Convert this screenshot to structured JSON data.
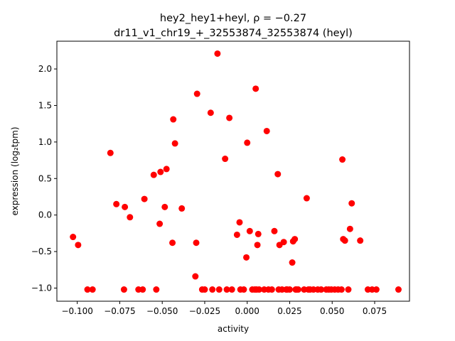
{
  "chart_data": {
    "type": "scatter",
    "title_line1": "hey2_hey1+heyl, ρ = −0.27",
    "title_line2": "dr11_v1_chr19_+_32553874_32553874 (heyl)",
    "xlabel": "activity",
    "ylabel": "expression (log₂tpm)",
    "xlim": [
      -0.112,
      0.0955
    ],
    "ylim": [
      -1.18,
      2.38
    ],
    "xticks": [
      -0.1,
      -0.075,
      -0.05,
      -0.025,
      0.0,
      0.025,
      0.05,
      0.075
    ],
    "xtick_labels": [
      "−0.100",
      "−0.075",
      "−0.050",
      "−0.025",
      "0.000",
      "0.025",
      "0.050",
      "0.075"
    ],
    "yticks": [
      -1.0,
      -0.5,
      0.0,
      0.5,
      1.0,
      1.5,
      2.0
    ],
    "ytick_labels": [
      "−1.0",
      "−0.5",
      "0.0",
      "0.5",
      "1.0",
      "1.5",
      "2.0"
    ],
    "grid": false,
    "marker_color": "#ff0000",
    "series": [
      {
        "x": [
          -0.1025,
          -0.0995,
          -0.094,
          -0.091,
          -0.0805,
          -0.077,
          -0.0725,
          -0.072,
          -0.069,
          -0.064,
          -0.0615,
          -0.0605,
          -0.055,
          -0.0535,
          -0.0515,
          -0.051,
          -0.0485,
          -0.0475,
          -0.044,
          -0.0435,
          -0.0425,
          -0.0385,
          -0.0305,
          -0.03,
          -0.0295,
          -0.0265,
          -0.025,
          -0.0215,
          -0.0205,
          -0.0175,
          -0.0165,
          -0.013,
          -0.012,
          -0.0105,
          -0.009,
          -0.006,
          -0.0045,
          -0.004,
          -0.002,
          -0.0005,
          0.0,
          0.0015,
          0.003,
          0.0045,
          0.005,
          0.0055,
          0.006,
          0.0065,
          0.007,
          0.01,
          0.0115,
          0.0125,
          0.0145,
          0.016,
          0.018,
          0.0185,
          0.019,
          0.0205,
          0.0215,
          0.023,
          0.0235,
          0.025,
          0.0265,
          0.027,
          0.028,
          0.0285,
          0.029,
          0.03,
          0.0335,
          0.035,
          0.036,
          0.037,
          0.039,
          0.0415,
          0.0435,
          0.0465,
          0.048,
          0.0495,
          0.0515,
          0.0535,
          0.0555,
          0.056,
          0.0565,
          0.0575,
          0.0595,
          0.0605,
          0.0615,
          0.0665,
          0.071,
          0.0735,
          0.076,
          0.089
        ],
        "y": [
          -0.3,
          -0.41,
          -1.02,
          -1.02,
          0.85,
          0.15,
          -1.02,
          0.11,
          -0.03,
          -1.02,
          -1.02,
          0.22,
          0.55,
          -1.02,
          -0.12,
          0.59,
          0.11,
          0.63,
          -0.38,
          1.31,
          0.98,
          0.09,
          -0.84,
          -0.38,
          1.66,
          -1.02,
          -1.02,
          1.4,
          -1.02,
          2.21,
          -1.02,
          0.77,
          -1.02,
          1.33,
          -1.02,
          -0.27,
          -0.1,
          -1.02,
          -1.02,
          -0.58,
          0.99,
          -0.22,
          -1.02,
          -1.02,
          1.73,
          -1.02,
          -0.41,
          -0.26,
          -1.02,
          -1.02,
          1.15,
          -1.02,
          -1.02,
          -0.22,
          0.56,
          -1.02,
          -0.41,
          -1.02,
          -0.37,
          -1.02,
          -1.02,
          -1.02,
          -0.65,
          -0.36,
          -0.33,
          -1.02,
          -1.02,
          -1.02,
          -1.02,
          0.23,
          -1.02,
          -1.02,
          -1.02,
          -1.02,
          -1.02,
          -1.02,
          -1.02,
          -1.02,
          -1.02,
          -1.02,
          -1.02,
          0.76,
          -0.33,
          -0.35,
          -1.02,
          -0.19,
          0.16,
          -0.35,
          -1.02,
          -1.02,
          -1.02,
          -1.02
        ]
      }
    ]
  }
}
